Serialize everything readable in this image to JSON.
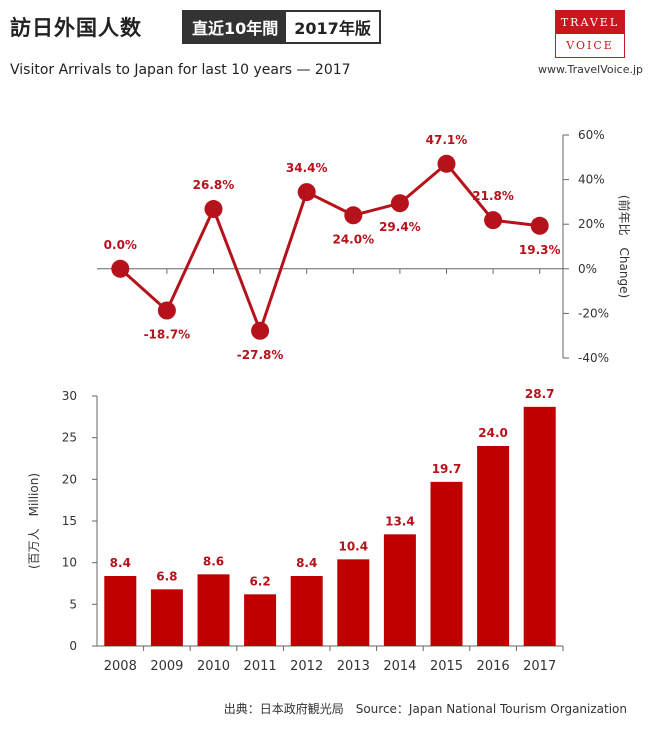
{
  "header": {
    "title_jp": "訪日外国人数",
    "badge_dark": "直近10年間",
    "badge_light": "2017年版",
    "subtitle": "Visitor Arrivals to Japan for last 10 years — 2017",
    "logo_top": "TRAVEL",
    "logo_bottom": "VOICE",
    "website": "www.TravelVoice.jp"
  },
  "footer": {
    "source": "出典：日本政府観光局　Source：Japan  National Tourism  Organization"
  },
  "colors": {
    "accent": "#c8171e",
    "bar": "#c00000",
    "line": "#b5121b"
  },
  "chart_data": [
    {
      "type": "line",
      "x": [
        "2008",
        "2009",
        "2010",
        "2011",
        "2012",
        "2013",
        "2014",
        "2015",
        "2016",
        "2017"
      ],
      "values": [
        0.0,
        -18.7,
        26.8,
        -27.8,
        34.4,
        24.0,
        29.4,
        47.1,
        21.8,
        19.3
      ],
      "value_labels": [
        "0.0%",
        "-18.7%",
        "26.8%",
        "-27.8%",
        "34.4%",
        "24.0%",
        "29.4%",
        "47.1%",
        "21.8%",
        "19.3%"
      ],
      "ylabel": "(前年比　Change)",
      "ylim": [
        -40,
        60
      ],
      "yticks": [
        -40,
        -20,
        0,
        20,
        40,
        60
      ],
      "ytick_labels": [
        "-40%",
        "-20%",
        "0%",
        "20%",
        "40%",
        "60%"
      ],
      "yaxis_position": "right",
      "grid": false
    },
    {
      "type": "bar",
      "categories": [
        "2008",
        "2009",
        "2010",
        "2011",
        "2012",
        "2013",
        "2014",
        "2015",
        "2016",
        "2017"
      ],
      "values": [
        8.4,
        6.8,
        8.6,
        6.2,
        8.4,
        10.4,
        13.4,
        19.7,
        24.0,
        28.7
      ],
      "value_labels": [
        "8.4",
        "6.8",
        "8.6",
        "6.2",
        "8.4",
        "10.4",
        "13.4",
        "19.7",
        "24.0",
        "28.7"
      ],
      "ylabel": "(百万人　Million)",
      "ylim": [
        0,
        30
      ],
      "yticks": [
        0,
        5,
        10,
        15,
        20,
        25,
        30
      ],
      "ytick_labels": [
        "0",
        "5",
        "10",
        "15",
        "20",
        "25",
        "30"
      ],
      "yaxis_position": "left",
      "grid": false
    }
  ]
}
